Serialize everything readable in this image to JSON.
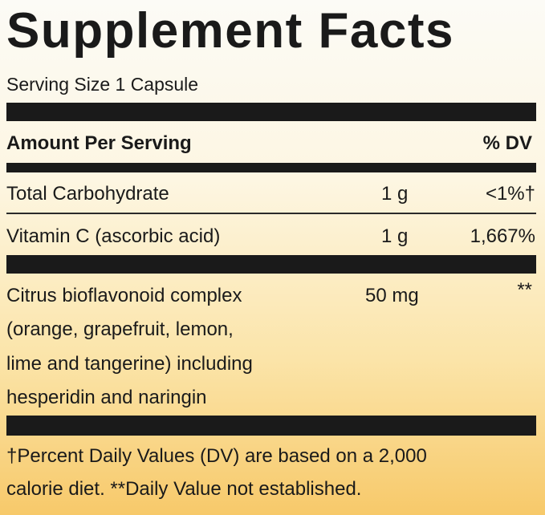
{
  "header": {
    "title": "Supplement Facts",
    "serving_size": "Serving Size 1 Capsule"
  },
  "table": {
    "header": {
      "amount": "Amount Per Serving",
      "dv": "% DV"
    },
    "rows": [
      {
        "name": [
          "Total Carbohydrate"
        ],
        "amount": "1 g",
        "dv": "<1%†"
      },
      {
        "name": [
          "Vitamin C (ascorbic acid)"
        ],
        "amount": "1 g",
        "dv": "1,667%"
      },
      {
        "name": [
          "Citrus bioflavonoid complex",
          "(orange, grapefruit, lemon,",
          "lime and tangerine) including",
          "hesperidin and naringin"
        ],
        "amount": "50 mg",
        "dv": "**"
      }
    ]
  },
  "footnote": [
    "†Percent Daily Values (DV) are based on a 2,000",
    "calorie diet. **Daily Value not established."
  ]
}
